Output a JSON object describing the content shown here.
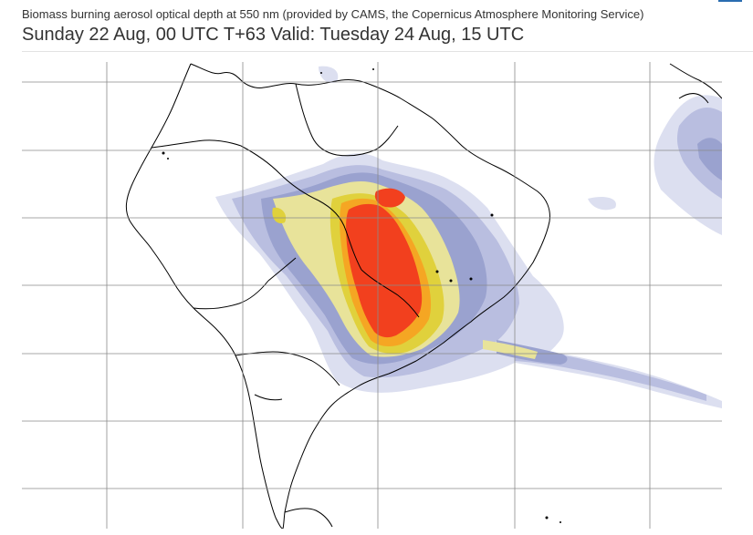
{
  "header": {
    "subtitle": "Biomass burning aerosol optical depth at 550 nm (provided by CAMS, the Copernicus Atmosphere Monitoring Service)",
    "title": "Sunday 22 Aug, 00 UTC T+63 Valid: Tuesday 24 Aug, 15 UTC"
  },
  "map": {
    "region": "South America",
    "grid": true,
    "colors": {
      "level_1": "#dcdff0",
      "level_2": "#b9bee0",
      "level_3": "#9aa2cf",
      "level_4": "#e8e39a",
      "level_5": "#e0d13c",
      "level_6": "#f5a623",
      "level_7": "#f2401e",
      "coastline": "#000000",
      "grid": "#8a8a8a"
    }
  }
}
